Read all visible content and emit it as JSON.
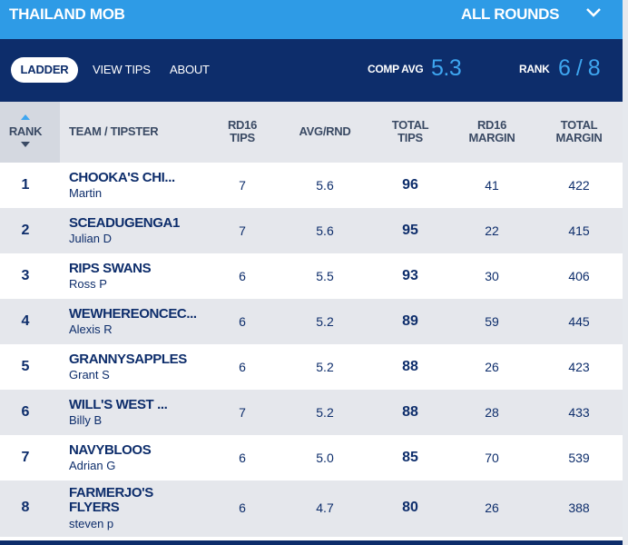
{
  "header": {
    "competition": "THAILAND MOB",
    "round_select": "ALL ROUNDS"
  },
  "nav": {
    "tabs": [
      {
        "label": "LADDER",
        "active": true
      },
      {
        "label": "VIEW TIPS",
        "active": false
      },
      {
        "label": "ABOUT",
        "active": false
      }
    ],
    "comp_avg_label": "COMP AVG",
    "comp_avg_value": "5.3",
    "rank_label": "RANK",
    "rank_value": "6 / 8"
  },
  "table": {
    "headers": {
      "rank": "RANK",
      "team": "TEAM / TIPSTER",
      "rd_tips": [
        "RD16",
        "TIPS"
      ],
      "avg": "AVG/RND",
      "total_tips": [
        "TOTAL",
        "TIPS"
      ],
      "rd_margin": [
        "RD16",
        "MARGIN"
      ],
      "total_margin": [
        "TOTAL",
        "MARGIN"
      ]
    },
    "rows": [
      {
        "rank": "1",
        "team": "CHOOKA'S CHI...",
        "tipster": "Martin",
        "rd_tips": "7",
        "avg": "5.6",
        "total_tips": "96",
        "rd_margin": "41",
        "total_margin": "422"
      },
      {
        "rank": "2",
        "team": "SCEADUGENGA1",
        "tipster": "Julian D",
        "rd_tips": "7",
        "avg": "5.6",
        "total_tips": "95",
        "rd_margin": "22",
        "total_margin": "415"
      },
      {
        "rank": "3",
        "team": "RIPS SWANS",
        "tipster": "Ross P",
        "rd_tips": "6",
        "avg": "5.5",
        "total_tips": "93",
        "rd_margin": "30",
        "total_margin": "406"
      },
      {
        "rank": "4",
        "team": "WEWHEREONCEC...",
        "tipster": "Alexis R",
        "rd_tips": "6",
        "avg": "5.2",
        "total_tips": "89",
        "rd_margin": "59",
        "total_margin": "445"
      },
      {
        "rank": "5",
        "team": "GRANNYSAPPLES",
        "tipster": "Grant S",
        "rd_tips": "6",
        "avg": "5.2",
        "total_tips": "88",
        "rd_margin": "26",
        "total_margin": "423"
      },
      {
        "rank": "6",
        "team": "WILL'S WEST ...",
        "tipster": "Billy B",
        "rd_tips": "7",
        "avg": "5.2",
        "total_tips": "88",
        "rd_margin": "28",
        "total_margin": "433"
      },
      {
        "rank": "7",
        "team": "NAVYBLOOS",
        "tipster": "Adrian G",
        "rd_tips": "6",
        "avg": "5.0",
        "total_tips": "85",
        "rd_margin": "70",
        "total_margin": "539"
      },
      {
        "rank": "8",
        "team": "FARMERJO'S FLYERS",
        "team_line1": "FARMERJO'S",
        "team_line2": "FLYERS",
        "tipster": "steven p",
        "rd_tips": "6",
        "avg": "4.7",
        "total_tips": "80",
        "rd_margin": "26",
        "total_margin": "388"
      }
    ]
  },
  "colors": {
    "nav_bg": "#0d2d6b",
    "top_bg": "#2e9be6",
    "accent": "#3ea6f0",
    "row_alt": "#e5e7ec"
  }
}
